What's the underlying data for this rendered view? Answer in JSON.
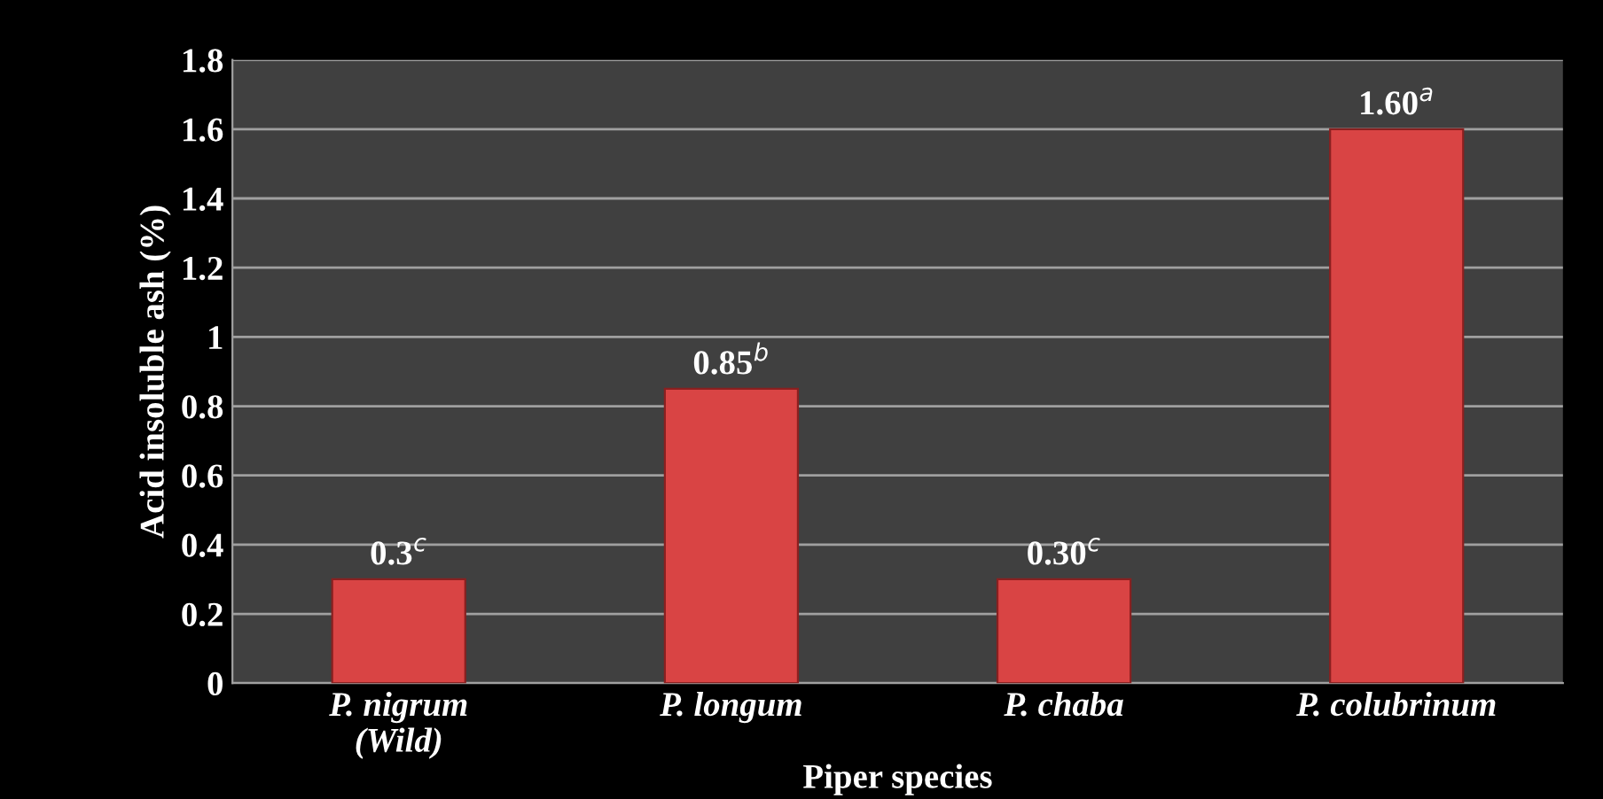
{
  "chart_data": {
    "type": "bar",
    "xlabel": "Piper species",
    "ylabel": "Acid insoluble ash (%)",
    "categories": [
      "P. nigrum\n(Wild)",
      "P. longum",
      "P. chaba",
      "P. colubrinum"
    ],
    "values": [
      0.3,
      0.85,
      0.3,
      1.6
    ],
    "color": "#d94444",
    "value_labels": [
      "0.3$^{c}$",
      "0.85$^{b}$",
      "0.30$^{c}$",
      "1.60$^{a}$"
    ],
    "ylim": [
      0,
      1.8
    ],
    "yticks": [
      0,
      0.2,
      0.4,
      0.6,
      0.8,
      1,
      1.2,
      1.4,
      1.6,
      1.8
    ],
    "grid": "y"
  }
}
